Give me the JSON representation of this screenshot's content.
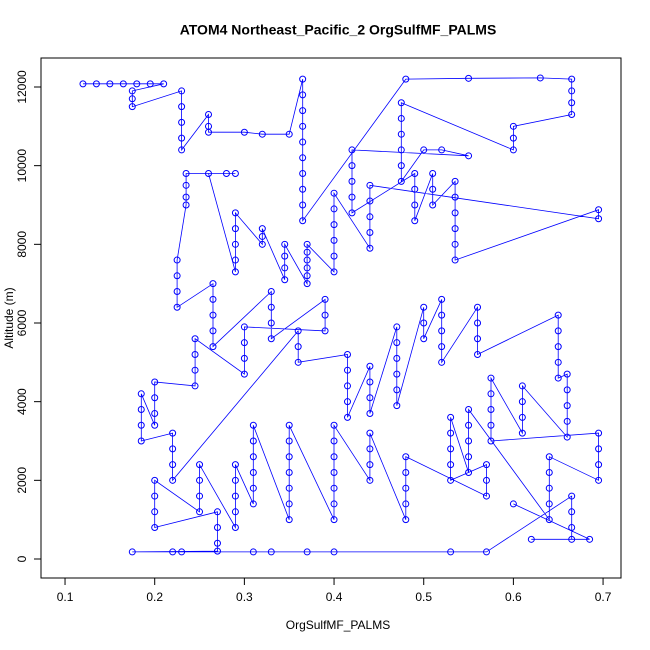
{
  "chart_data": {
    "type": "scatter",
    "title": "ATOM4 Northeast_Pacific_2 OrgSulfMF_PALMS",
    "x_label": "OrgSulfMF_PALMS",
    "y_label": "Altitude (m)",
    "color": "#0000ff",
    "connect": true,
    "xlim": [
      0.0732,
      0.72
    ],
    "ylim": [
      -483,
      12737
    ],
    "xticks": [
      0.1,
      0.2,
      0.3,
      0.4,
      0.5,
      0.6,
      0.7
    ],
    "yticks": [
      0,
      2000,
      4000,
      6000,
      8000,
      10000,
      12000
    ],
    "x": [
      0.12,
      0.135,
      0.15,
      0.165,
      0.18,
      0.195,
      0.21,
      0.175,
      0.175,
      0.175,
      0.23,
      0.23,
      0.23,
      0.23,
      0.23,
      0.26,
      0.26,
      0.26,
      0.3,
      0.32,
      0.35,
      0.365,
      0.365,
      0.365,
      0.365,
      0.365,
      0.365,
      0.365,
      0.365,
      0.365,
      0.365,
      0.48,
      0.55,
      0.63,
      0.665,
      0.665,
      0.665,
      0.665,
      0.6,
      0.6,
      0.6,
      0.475,
      0.475,
      0.475,
      0.475,
      0.475,
      0.475,
      0.5,
      0.52,
      0.55,
      0.42,
      0.42,
      0.42,
      0.42,
      0.42,
      0.49,
      0.49,
      0.49,
      0.49,
      0.51,
      0.51,
      0.51,
      0.535,
      0.535,
      0.535,
      0.535,
      0.535,
      0.535,
      0.695,
      0.695,
      0.44,
      0.44,
      0.44,
      0.44,
      0.44,
      0.4,
      0.4,
      0.4,
      0.4,
      0.4,
      0.4,
      0.37,
      0.37,
      0.37,
      0.37,
      0.37,
      0.37,
      0.345,
      0.345,
      0.345,
      0.345,
      0.32,
      0.32,
      0.32,
      0.29,
      0.29,
      0.29,
      0.29,
      0.29,
      0.26,
      0.28,
      0.29,
      0.235,
      0.235,
      0.235,
      0.235,
      0.225,
      0.225,
      0.225,
      0.225,
      0.265,
      0.265,
      0.265,
      0.265,
      0.265,
      0.33,
      0.33,
      0.33,
      0.33,
      0.39,
      0.39,
      0.39,
      0.3,
      0.3,
      0.3,
      0.3,
      0.245,
      0.245,
      0.245,
      0.245,
      0.2,
      0.2,
      0.2,
      0.2,
      0.185,
      0.185,
      0.185,
      0.185,
      0.22,
      0.22,
      0.22,
      0.22,
      0.36,
      0.36,
      0.36,
      0.415,
      0.415,
      0.415,
      0.415,
      0.415,
      0.44,
      0.44,
      0.44,
      0.44,
      0.47,
      0.47,
      0.47,
      0.47,
      0.47,
      0.47,
      0.5,
      0.5,
      0.5,
      0.52,
      0.52,
      0.52,
      0.52,
      0.52,
      0.56,
      0.56,
      0.56,
      0.56,
      0.65,
      0.65,
      0.65,
      0.65,
      0.65,
      0.66,
      0.66,
      0.66,
      0.66,
      0.66,
      0.61,
      0.61,
      0.61,
      0.61,
      0.575,
      0.575,
      0.575,
      0.575,
      0.575,
      0.695,
      0.695,
      0.695,
      0.695,
      0.64,
      0.64,
      0.64,
      0.64,
      0.64,
      0.55,
      0.55,
      0.55,
      0.55,
      0.55,
      0.53,
      0.53,
      0.53,
      0.53,
      0.53,
      0.57,
      0.57,
      0.57,
      0.48,
      0.48,
      0.48,
      0.48,
      0.48,
      0.44,
      0.44,
      0.44,
      0.44,
      0.4,
      0.4,
      0.4,
      0.4,
      0.4,
      0.4,
      0.4,
      0.35,
      0.35,
      0.35,
      0.35,
      0.35,
      0.35,
      0.35,
      0.31,
      0.31,
      0.31,
      0.31,
      0.31,
      0.31,
      0.29,
      0.29,
      0.29,
      0.29,
      0.29,
      0.25,
      0.25,
      0.25,
      0.25,
      0.2,
      0.2,
      0.2,
      0.2,
      0.27,
      0.27,
      0.27,
      0.27,
      0.175,
      0.22,
      0.23,
      0.31,
      0.33,
      0.37,
      0.4,
      0.53,
      0.57,
      0.665,
      0.665,
      0.665,
      0.665,
      0.62,
      0.685,
      0.6
    ],
    "y": [
      12080,
      12080,
      12080,
      12080,
      12080,
      12080,
      12080,
      11900,
      11700,
      11500,
      11900,
      11500,
      11100,
      10700,
      10400,
      11300,
      11000,
      10850,
      10850,
      10800,
      10800,
      12200,
      11800,
      11400,
      11000,
      10600,
      10200,
      9800,
      9400,
      9000,
      8600,
      12200,
      12220,
      12230,
      12200,
      11900,
      11600,
      11300,
      11000,
      10700,
      10400,
      11600,
      11200,
      10800,
      10400,
      10000,
      9600,
      10400,
      10400,
      10250,
      10400,
      10000,
      9600,
      9200,
      8800,
      9800,
      9400,
      9000,
      8600,
      9800,
      9400,
      9000,
      9600,
      9200,
      8800,
      8400,
      8000,
      7600,
      8880,
      8650,
      9500,
      9100,
      8700,
      8300,
      7900,
      9300,
      8900,
      8500,
      8100,
      7700,
      7300,
      8000,
      7800,
      7600,
      7400,
      7200,
      7000,
      8000,
      7700,
      7400,
      7100,
      8400,
      8200,
      8000,
      8800,
      8400,
      8000,
      7600,
      7300,
      9800,
      9800,
      9800,
      9800,
      9500,
      9200,
      9000,
      7600,
      7200,
      6800,
      6400,
      7000,
      6600,
      6200,
      5800,
      5400,
      6800,
      6400,
      6000,
      5600,
      6600,
      6200,
      5800,
      5900,
      5500,
      5100,
      4700,
      5600,
      5200,
      4800,
      4400,
      4500,
      4100,
      3700,
      3400,
      4200,
      3800,
      3400,
      3000,
      3200,
      2800,
      2400,
      2000,
      5800,
      5400,
      5000,
      5200,
      4800,
      4400,
      4000,
      3600,
      4900,
      4500,
      4100,
      3700,
      5900,
      5500,
      5100,
      4700,
      4300,
      3900,
      6400,
      6000,
      5600,
      6600,
      6200,
      5800,
      5400,
      5000,
      6400,
      6000,
      5600,
      5200,
      6200,
      5800,
      5400,
      5000,
      4600,
      4700,
      4300,
      3900,
      3500,
      3100,
      4400,
      4000,
      3600,
      3200,
      4600,
      4200,
      3800,
      3400,
      3000,
      3200,
      2800,
      2400,
      2000,
      2600,
      2200,
      1800,
      1400,
      1000,
      3800,
      3400,
      3000,
      2600,
      2200,
      3600,
      3200,
      2800,
      2400,
      2000,
      2400,
      2000,
      1600,
      2600,
      2200,
      1800,
      1400,
      1000,
      3200,
      2800,
      2400,
      2000,
      3400,
      3000,
      2600,
      2200,
      1800,
      1400,
      1000,
      3400,
      3000,
      2600,
      2200,
      1800,
      1400,
      1000,
      3400,
      3000,
      2600,
      2200,
      1800,
      1400,
      2400,
      2000,
      1600,
      1200,
      800,
      2400,
      2000,
      1600,
      1200,
      2000,
      1600,
      1200,
      800,
      1200,
      800,
      400,
      200,
      180,
      180,
      180,
      180,
      180,
      180,
      180,
      180,
      180,
      1600,
      1200,
      800,
      500,
      500,
      500,
      1400
    ]
  }
}
